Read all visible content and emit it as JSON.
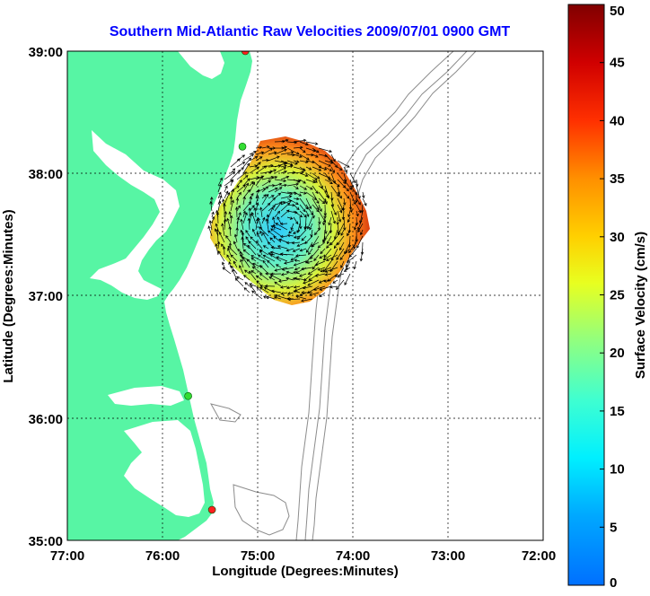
{
  "title": "Southern Mid-Atlantic Raw Velocities 2009/07/01 0900 GMT",
  "map": {
    "xlabel": "Longitude (Degrees:Minutes)",
    "ylabel": "Latitude (Degrees:Minutes)",
    "x_ticks": [
      "77:00",
      "76:00",
      "75:00",
      "74:00",
      "73:00",
      "72:00"
    ],
    "y_ticks": [
      "39:00",
      "38:00",
      "37:00",
      "36:00",
      "35:00"
    ],
    "lon_range": [
      -77,
      -72
    ],
    "lat_range": [
      35,
      39
    ],
    "grid": true,
    "colors": {
      "land": "#57f5a4",
      "water": "#ffffff",
      "bathymetry": "#8c8c8c",
      "title": "#0000ff",
      "station_active": "#33dd33",
      "station_inactive": "#ff2020"
    },
    "stations": [
      {
        "lon": -75.13,
        "lat": 39.0,
        "status": "inactive"
      },
      {
        "lon": -75.16,
        "lat": 38.22,
        "status": "active"
      },
      {
        "lon": -75.73,
        "lat": 36.18,
        "status": "active"
      },
      {
        "lon": -75.48,
        "lat": 35.25,
        "status": "inactive"
      }
    ]
  },
  "colorbar": {
    "label": "Surface Velocity (cm/s)",
    "ticks": [
      "0",
      "5",
      "10",
      "15",
      "20",
      "25",
      "30",
      "35",
      "40",
      "45",
      "50"
    ],
    "min": 0,
    "max": 50
  }
}
